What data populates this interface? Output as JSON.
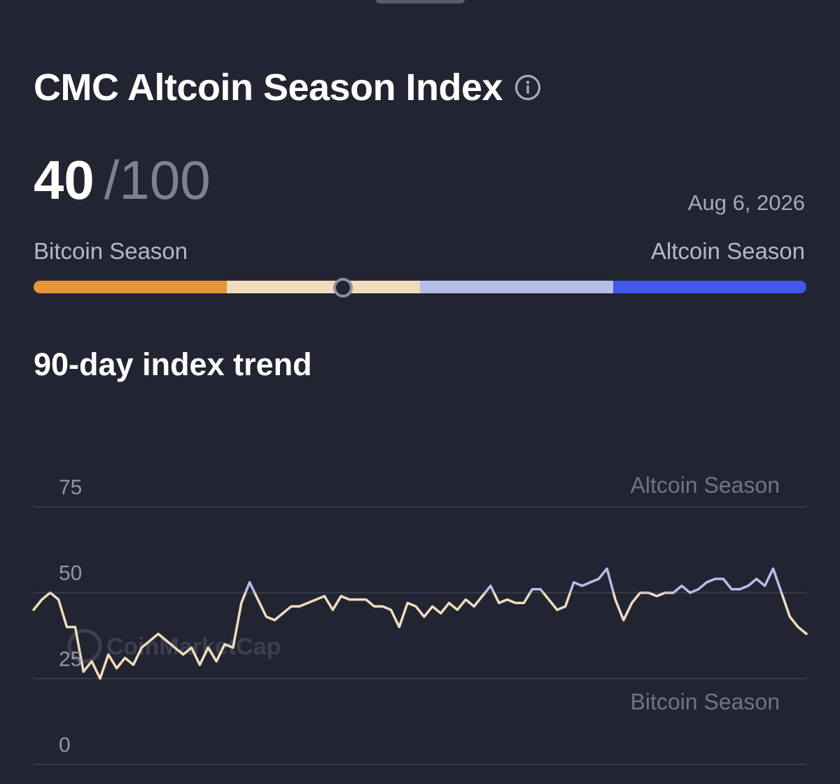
{
  "header": {
    "title": "CMC Altcoin Season Index",
    "info_icon": "info-circle-icon"
  },
  "score": {
    "value": "40",
    "max": "/100",
    "date": "Aug 6, 2026"
  },
  "gauge": {
    "left_label": "Bitcoin Season",
    "right_label": "Altcoin Season",
    "value": 40,
    "segments": [
      "#e8943a",
      "#f0dcbd",
      "#b6bde9",
      "#3f58ea"
    ]
  },
  "trend": {
    "title": "90-day index trend"
  },
  "chart_data": {
    "type": "line",
    "title": "90-day index trend",
    "ylim": [
      0,
      75
    ],
    "yticks": [
      "75",
      "50",
      "25",
      "0"
    ],
    "grid": true,
    "zone_labels": {
      "upper": "Altcoin Season",
      "lower": "Bitcoin Season"
    },
    "colors": {
      "above_50": "#b6bde9",
      "below_50": "#f0dcbd"
    },
    "watermark": "CoinMarketCap",
    "series": [
      {
        "values": [
          45,
          48,
          50,
          48,
          40,
          40,
          27,
          30,
          25,
          32,
          28,
          31,
          29,
          34,
          36,
          38,
          36,
          34,
          32,
          34,
          29,
          34,
          30,
          35,
          34,
          47,
          53,
          48,
          43,
          42,
          44,
          46,
          46,
          47,
          48,
          49,
          45,
          49,
          48,
          48,
          48,
          46,
          46,
          45,
          40,
          47,
          46,
          43,
          46,
          44,
          47,
          45,
          48,
          46,
          49,
          52,
          47,
          48,
          47,
          47,
          51,
          51,
          48,
          45,
          46,
          53,
          52,
          53,
          54,
          57,
          48,
          42,
          47,
          50,
          50,
          49,
          50,
          50,
          52,
          50,
          51,
          53,
          54,
          54,
          51,
          51,
          52,
          54,
          52,
          57,
          50,
          43,
          40,
          38
        ]
      }
    ]
  }
}
